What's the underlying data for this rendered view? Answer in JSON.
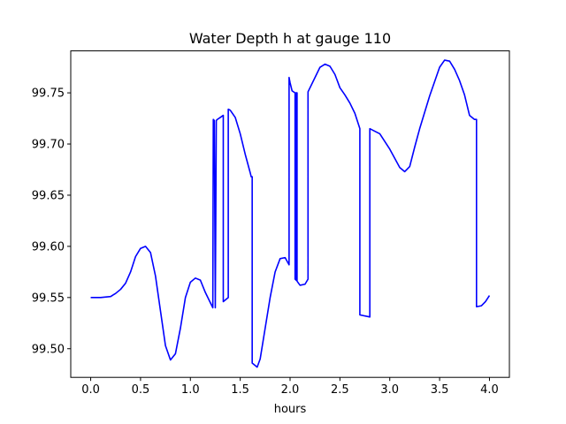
{
  "chart_data": {
    "type": "line",
    "title": "Water Depth h at gauge 110",
    "xlabel": "hours",
    "ylabel": "",
    "xlim": [
      -0.2,
      4.2
    ],
    "ylim": [
      99.472,
      99.791
    ],
    "xticks": [
      0.0,
      0.5,
      1.0,
      1.5,
      2.0,
      2.5,
      3.0,
      3.5,
      4.0
    ],
    "xtick_labels": [
      "0.0",
      "0.5",
      "1.0",
      "1.5",
      "2.0",
      "2.5",
      "3.0",
      "3.5",
      "4.0"
    ],
    "yticks": [
      99.5,
      99.55,
      99.6,
      99.65,
      99.7,
      99.75
    ],
    "ytick_labels": [
      "99.50",
      "99.55",
      "99.60",
      "99.65",
      "99.70",
      "99.75"
    ],
    "grid": false,
    "legend": "none",
    "line_color": "#0000ff",
    "series": [
      {
        "x": [
          0.0,
          0.1,
          0.2,
          0.25,
          0.3,
          0.35,
          0.4,
          0.45,
          0.5,
          0.55,
          0.6,
          0.65,
          0.7,
          0.75,
          0.8,
          0.85,
          0.9,
          0.95,
          1.0,
          1.05,
          1.1,
          1.15,
          1.2,
          1.225,
          1.23,
          1.24,
          1.25,
          1.26,
          1.27,
          1.3,
          1.33,
          1.33,
          1.38,
          1.38,
          1.4,
          1.45,
          1.5,
          1.55,
          1.6,
          1.61,
          1.62,
          1.62,
          1.67,
          1.7,
          1.75,
          1.8,
          1.85,
          1.9,
          1.95,
          1.99,
          1.99,
          2.0,
          2.02,
          2.05,
          2.05,
          2.06,
          2.06,
          2.07,
          2.07,
          2.1,
          2.15,
          2.18,
          2.18,
          2.25,
          2.3,
          2.35,
          2.4,
          2.45,
          2.5,
          2.55,
          2.6,
          2.65,
          2.7,
          2.7,
          2.8,
          2.8,
          2.9,
          3.0,
          3.1,
          3.15,
          3.2,
          3.25,
          3.3,
          3.4,
          3.5,
          3.55,
          3.6,
          3.65,
          3.7,
          3.75,
          3.8,
          3.85,
          3.87,
          3.87,
          3.92,
          3.96,
          4.0
        ],
        "y": [
          99.55,
          99.55,
          99.551,
          99.554,
          99.558,
          99.564,
          99.575,
          99.59,
          99.598,
          99.6,
          99.594,
          99.571,
          99.537,
          99.503,
          99.489,
          99.495,
          99.52,
          99.55,
          99.565,
          99.569,
          99.567,
          99.555,
          99.545,
          99.54,
          99.724,
          99.723,
          99.54,
          99.723,
          99.724,
          99.726,
          99.728,
          99.546,
          99.55,
          99.734,
          99.733,
          99.726,
          99.71,
          99.69,
          99.672,
          99.668,
          99.668,
          99.486,
          99.482,
          99.49,
          99.52,
          99.55,
          99.575,
          99.588,
          99.589,
          99.582,
          99.765,
          99.76,
          99.752,
          99.75,
          99.568,
          99.567,
          99.75,
          99.75,
          99.566,
          99.562,
          99.563,
          99.568,
          99.751,
          99.765,
          99.775,
          99.778,
          99.776,
          99.768,
          99.755,
          99.748,
          99.74,
          99.73,
          99.715,
          99.533,
          99.531,
          99.715,
          99.71,
          99.695,
          99.677,
          99.673,
          99.678,
          99.697,
          99.715,
          99.747,
          99.775,
          99.782,
          99.781,
          99.773,
          99.762,
          99.748,
          99.728,
          99.724,
          99.724,
          99.541,
          99.542,
          99.546,
          99.552
        ]
      }
    ]
  }
}
